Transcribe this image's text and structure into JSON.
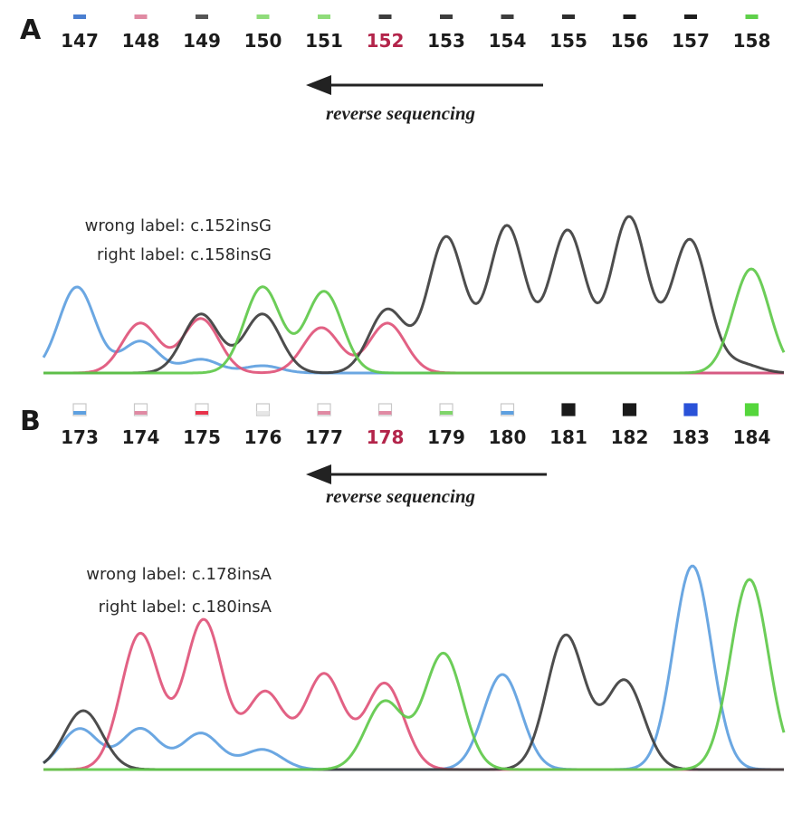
{
  "colors": {
    "A_base": "#5ea0e0",
    "C_base": "#e0547a",
    "G_base": "#3e3e3e",
    "T_base": "#60c94a",
    "highlight_label": "#b3244a"
  },
  "panels": [
    {
      "letter": "A",
      "positions": [
        "147",
        "148",
        "149",
        "150",
        "151",
        "152",
        "153",
        "154",
        "155",
        "156",
        "157",
        "158"
      ],
      "highlight_position": "152",
      "marker_colors": [
        "#4a7fd0",
        "#e08aa3",
        "#555555",
        "#8fdc7a",
        "#8fdc7a",
        "#3d3d3d",
        "#3d3d3d",
        "#3d3d3d",
        "#2e2e2e",
        "#1e1e1e",
        "#1e1e1e",
        "#5fd04a"
      ],
      "arrow_caption": "reverse sequencing",
      "wrong_label": "wrong label: c.152insG",
      "right_label": "right label: c.158insG"
    },
    {
      "letter": "B",
      "positions": [
        "173",
        "174",
        "175",
        "176",
        "177",
        "178",
        "179",
        "180",
        "181",
        "182",
        "183",
        "184"
      ],
      "highlight_position": "178",
      "marker_colors": [
        "#5ea0e0",
        "#e08aa3",
        "#e8324a",
        "#e6e6e6",
        "#e08aa3",
        "#e08aa3",
        "#7fd46a",
        "#5ea0e0",
        "#1a1a1a",
        "#1a1a1a",
        "#2a52d8",
        "#55d63c"
      ],
      "arrow_caption": "reverse sequencing",
      "wrong_label": "wrong label: c.178insA",
      "right_label": "right label: c.180insA"
    }
  ],
  "traces": {
    "A": [
      {
        "base": "A",
        "color": "#5ea0e0",
        "peaks": [
          [
            85,
            95
          ],
          [
            155,
            35
          ],
          [
            222,
            15
          ],
          [
            290,
            8
          ]
        ]
      },
      {
        "base": "C",
        "color": "#e0547a",
        "peaks": [
          [
            155,
            55
          ],
          [
            222,
            60
          ],
          [
            355,
            50
          ],
          [
            428,
            55
          ]
        ]
      },
      {
        "base": "G",
        "color": "#3e3e3e",
        "peaks": [
          [
            222,
            65
          ],
          [
            290,
            65
          ],
          [
            428,
            70
          ],
          [
            493,
            150
          ],
          [
            560,
            162
          ],
          [
            627,
            157
          ],
          [
            695,
            172
          ],
          [
            762,
            147
          ],
          [
            818,
            10
          ]
        ]
      },
      {
        "base": "T",
        "color": "#60c94a",
        "peaks": [
          [
            290,
            95
          ],
          [
            358,
            90
          ],
          [
            830,
            115
          ]
        ]
      }
    ],
    "B": [
      {
        "base": "A",
        "color": "#5ea0e0",
        "peaks": [
          [
            88,
            45
          ],
          [
            155,
            45
          ],
          [
            222,
            40
          ],
          [
            290,
            22
          ],
          [
            555,
            105
          ],
          [
            765,
            225
          ]
        ]
      },
      {
        "base": "C",
        "color": "#e0547a",
        "peaks": [
          [
            155,
            150
          ],
          [
            225,
            165
          ],
          [
            293,
            85
          ],
          [
            358,
            105
          ],
          [
            425,
            95
          ]
        ]
      },
      {
        "base": "G",
        "color": "#3e3e3e",
        "peaks": [
          [
            92,
            65
          ],
          [
            625,
            148
          ],
          [
            690,
            98
          ]
        ]
      },
      {
        "base": "T",
        "color": "#60c94a",
        "peaks": [
          [
            425,
            75
          ],
          [
            490,
            128
          ],
          [
            828,
            210
          ]
        ]
      }
    ]
  }
}
